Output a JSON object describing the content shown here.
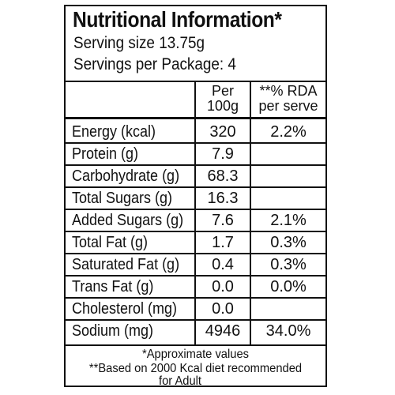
{
  "label": {
    "title": "Nutritional Information*",
    "serving_size": "Serving size 13.75g",
    "servings_per_package": "Servings per Package: 4"
  },
  "columns": {
    "per_100g_line1": "Per",
    "per_100g_line2": "100g",
    "rda_line1": "**% RDA",
    "rda_line2": "per serve"
  },
  "rows": [
    {
      "name": "Energy (kcal)",
      "per100g": "320",
      "rda": "2.2%"
    },
    {
      "name": "Protein (g)",
      "per100g": "7.9",
      "rda": ""
    },
    {
      "name": "Carbohydrate (g)",
      "per100g": "68.3",
      "rda": ""
    },
    {
      "name": "Total Sugars (g)",
      "per100g": "16.3",
      "rda": ""
    },
    {
      "name": "Added Sugars (g)",
      "per100g": "7.6",
      "rda": "2.1%"
    },
    {
      "name": "Total Fat (g)",
      "per100g": "1.7",
      "rda": "0.3%"
    },
    {
      "name": "Saturated Fat (g)",
      "per100g": "0.4",
      "rda": "0.3%"
    },
    {
      "name": "Trans Fat (g)",
      "per100g": "0.0",
      "rda": "0.0%"
    },
    {
      "name": "Cholesterol (mg)",
      "per100g": "0.0",
      "rda": ""
    },
    {
      "name": "Sodium (mg)",
      "per100g": "4946",
      "rda": "34.0%"
    }
  ],
  "footnotes": {
    "line1": "*Approximate values",
    "line2": "**Based on 2000 Kcal diet recommended",
    "line3": "for Adult"
  }
}
